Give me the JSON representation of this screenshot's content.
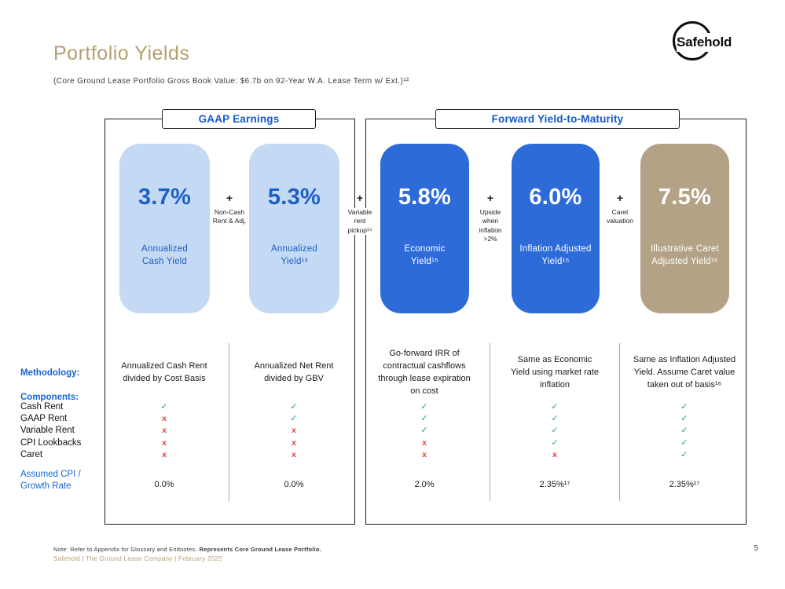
{
  "colors": {
    "brand_tan": "#b49e71",
    "accent_blue": "#1458cc",
    "card_light_blue": "#c4d9f4",
    "card_blue": "#2d6bd8",
    "card_tan": "#b4a286",
    "check_green": "#27a567",
    "cross_red": "#e23d3d"
  },
  "header": {
    "title": "Portfolio Yields",
    "subtitle": "(Core Ground Lease Portfolio Gross Book Value: $6.7b on 92-Year W.A. Lease Term w/ Ext.)¹²",
    "logo": "Safehold"
  },
  "sections": {
    "gaap": {
      "header": "GAAP Earnings"
    },
    "forward": {
      "header": "Forward Yield-to-Maturity"
    }
  },
  "cards": [
    {
      "value": "3.7%",
      "label": "Annualized Cash Yield"
    },
    {
      "value": "5.3%",
      "label": "Annualized Yield¹³"
    },
    {
      "value": "5.8%",
      "label": "Economic Yield¹⁵"
    },
    {
      "value": "6.0%",
      "label": "Inflation Adjusted Yield¹⁵"
    },
    {
      "value": "7.5%",
      "label": "Illustrative Caret Adjusted Yield¹⁶"
    }
  ],
  "connectors": [
    {
      "plus": "+",
      "label": "Non-Cash Rent & Adj."
    },
    {
      "plus": "+",
      "label": "Variable rent pickup¹⁴"
    },
    {
      "plus": "+",
      "label": "Upside when inflation >2%"
    },
    {
      "plus": "+",
      "label": "Caret valuation"
    }
  ],
  "methodology": {
    "methodology_label": "Methodology:",
    "components_label": "Components:",
    "components": [
      "Cash Rent",
      "GAAP Rent",
      "Variable Rent",
      "CPI Lookbacks",
      "Caret"
    ],
    "assumed_label": "Assumed CPI / Growth Rate",
    "columns": [
      {
        "description": "Annualized Cash Rent divided by Cost Basis",
        "marks": [
          true,
          false,
          false,
          false,
          false
        ],
        "assumed": "0.0%"
      },
      {
        "description": "Annualized Net Rent divided by GBV",
        "marks": [
          true,
          true,
          false,
          false,
          false
        ],
        "assumed": "0.0%"
      },
      {
        "description": "Go-forward IRR of contractual cashflows through lease expiration on cost",
        "marks": [
          true,
          true,
          true,
          false,
          false
        ],
        "assumed": "2.0%"
      },
      {
        "description": "Same as Economic Yield using market rate inflation",
        "marks": [
          true,
          true,
          true,
          true,
          false
        ],
        "assumed": "2.35%¹⁷"
      },
      {
        "description": "Same as Inflation Adjusted Yield. Assume Caret value taken out of basis¹⁶",
        "marks": [
          true,
          true,
          true,
          true,
          true
        ],
        "assumed": "2.35%¹⁷"
      }
    ]
  },
  "footer": {
    "note_normal": "Note: Refer to Appendix for Glossary and Endnotes.",
    "note_bold": "Represents Core Ground Lease Portfolio.",
    "company_line": "Safehold | The Ground Lease Company | February 2025",
    "page_number": "5"
  }
}
